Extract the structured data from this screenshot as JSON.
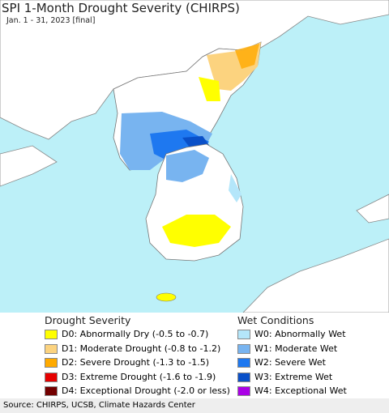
{
  "header": {
    "title": "SPI 1-Month Drought Severity (CHIRPS)",
    "subtitle": "Jan. 1 - 31, 2023 [final]"
  },
  "legend": {
    "drought": {
      "title": "Drought Severity",
      "items": [
        {
          "label": "D0: Abnormally Dry (-0.5 to -0.7)",
          "color": "#ffff00"
        },
        {
          "label": "D1: Moderate Drought (-0.8 to -1.2)",
          "color": "#fcd37f"
        },
        {
          "label": "D2: Severe Drought (-1.3 to -1.5)",
          "color": "#ffaa00"
        },
        {
          "label": "D3: Extreme Drought (-1.6 to -1.9)",
          "color": "#e60000"
        },
        {
          "label": "D4: Exceptional Drought (-2.0 or less)",
          "color": "#730000"
        }
      ]
    },
    "wet": {
      "title": "Wet Conditions",
      "items": [
        {
          "label": "W0: Abnormally Wet",
          "color": "#b4e6fa"
        },
        {
          "label": "W1: Moderate Wet",
          "color": "#78b4f0"
        },
        {
          "label": "W2: Severe Wet",
          "color": "#1e78f0"
        },
        {
          "label": "W3: Extreme Wet",
          "color": "#0a50c8"
        },
        {
          "label": "W4: Exceptional Wet",
          "color": "#aa00e6"
        }
      ]
    }
  },
  "footer": {
    "source": "Source: CHIRPS, UCSB, Climate Hazards Center"
  }
}
